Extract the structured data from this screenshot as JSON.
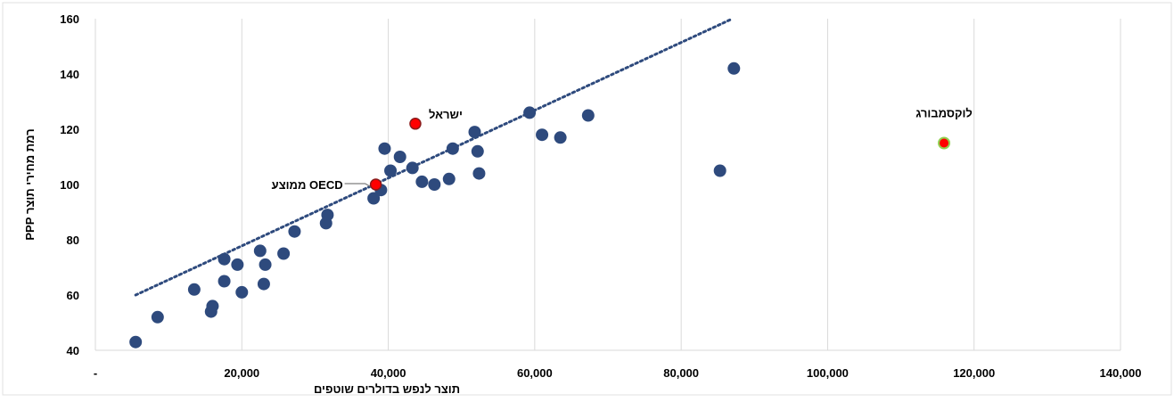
{
  "chart_data": {
    "type": "scatter",
    "xlabel": "תוצר לנפש בדולרים שוטפים",
    "ylabel": "רמת מחירי תוצר PPP",
    "xlim": [
      0,
      140000
    ],
    "ylim": [
      40,
      160
    ],
    "x_ticks": [
      0,
      20000,
      40000,
      60000,
      80000,
      100000,
      120000,
      140000
    ],
    "x_tick_labels": [
      "-",
      "20,000",
      "40,000",
      "60,000",
      "80,000",
      "100,000",
      "120,000",
      "140,000"
    ],
    "y_ticks": [
      40,
      60,
      80,
      100,
      120,
      140,
      160
    ],
    "y_tick_labels": [
      "40",
      "60",
      "80",
      "100",
      "120",
      "140",
      "160"
    ],
    "grid": "vertical",
    "colors": {
      "points": "#2e4a7d",
      "highlight": "#ff0000",
      "highlight_edge": "#8b1a1a",
      "luxembourg_edge": "#92d050",
      "trendline": "#2e4a7d",
      "grid": "#d9d9d9"
    },
    "trendline": {
      "style": "dotted",
      "x": [
        5500,
        87000
      ],
      "y": [
        60,
        160
      ]
    },
    "points": [
      {
        "x": 5500,
        "y": 43
      },
      {
        "x": 8500,
        "y": 52
      },
      {
        "x": 13500,
        "y": 62
      },
      {
        "x": 15800,
        "y": 54
      },
      {
        "x": 16000,
        "y": 56
      },
      {
        "x": 17600,
        "y": 65
      },
      {
        "x": 17600,
        "y": 73
      },
      {
        "x": 19400,
        "y": 71
      },
      {
        "x": 20000,
        "y": 61
      },
      {
        "x": 22500,
        "y": 76
      },
      {
        "x": 23000,
        "y": 64
      },
      {
        "x": 23200,
        "y": 71
      },
      {
        "x": 25700,
        "y": 75
      },
      {
        "x": 27200,
        "y": 83
      },
      {
        "x": 31500,
        "y": 86
      },
      {
        "x": 31700,
        "y": 89
      },
      {
        "x": 38000,
        "y": 95
      },
      {
        "x": 39000,
        "y": 98
      },
      {
        "x": 39500,
        "y": 113
      },
      {
        "x": 40300,
        "y": 105
      },
      {
        "x": 41600,
        "y": 110
      },
      {
        "x": 43300,
        "y": 106
      },
      {
        "x": 44600,
        "y": 101
      },
      {
        "x": 46300,
        "y": 100
      },
      {
        "x": 48300,
        "y": 102
      },
      {
        "x": 48800,
        "y": 113
      },
      {
        "x": 51800,
        "y": 119
      },
      {
        "x": 52200,
        "y": 112
      },
      {
        "x": 52400,
        "y": 104
      },
      {
        "x": 59300,
        "y": 126
      },
      {
        "x": 61000,
        "y": 118
      },
      {
        "x": 63500,
        "y": 117
      },
      {
        "x": 67300,
        "y": 125
      },
      {
        "x": 85300,
        "y": 105
      },
      {
        "x": 87200,
        "y": 142
      }
    ],
    "highlighted": [
      {
        "label": "ישראל",
        "x": 43700,
        "y": 122,
        "kind": "highlight"
      },
      {
        "label": "ממוצע OECD",
        "x": 38300,
        "y": 100,
        "kind": "highlight"
      },
      {
        "label": "לוקסמבורג",
        "x": 115900,
        "y": 115,
        "kind": "luxembourg"
      }
    ]
  }
}
